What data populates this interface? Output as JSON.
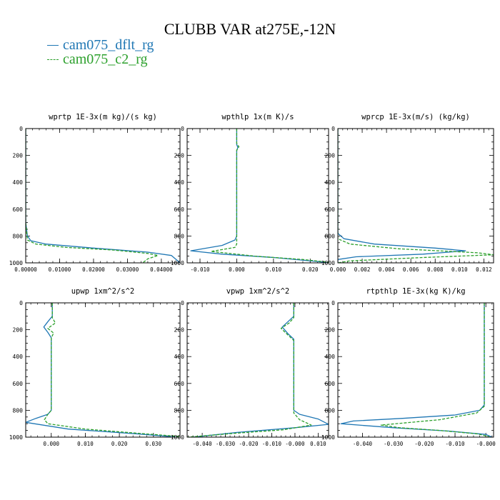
{
  "title": "CLUBB VAR at275E,-12N",
  "legend": [
    {
      "label": "cam075_dflt_rg",
      "color": "#1f77b4",
      "dash": "solid"
    },
    {
      "label": "cam075_c2_rg",
      "color": "#2ca02c",
      "dash": "dashed"
    }
  ],
  "chart_data": [
    {
      "type": "line",
      "title": "wprtp  1E-3x(m kg)/(s kg)",
      "xlim": [
        0,
        0.0455
      ],
      "ylim": [
        1000,
        0
      ],
      "xticks": [
        0,
        0.01,
        0.02,
        0.03,
        0.04
      ],
      "xticklabels": [
        "0.00000",
        "0.01000",
        "0.02000",
        "0.03000",
        "0.04000"
      ],
      "yticks": [
        0,
        200,
        400,
        600,
        800,
        1000
      ],
      "series": [
        {
          "name": "cam075_dflt_rg",
          "points": [
            [
              0,
              0
            ],
            [
              0,
              700
            ],
            [
              0.0005,
              800
            ],
            [
              0.0015,
              835
            ],
            [
              0.006,
              860
            ],
            [
              0.02,
              890
            ],
            [
              0.036,
              920
            ],
            [
              0.043,
              945
            ],
            [
              0.0455,
              1000
            ]
          ]
        },
        {
          "name": "cam075_c2_rg",
          "points": [
            [
              0,
              0
            ],
            [
              0,
              700
            ],
            [
              0.0005,
              830
            ],
            [
              0.003,
              860
            ],
            [
              0.012,
              885
            ],
            [
              0.026,
              905
            ],
            [
              0.036,
              930
            ],
            [
              0.039,
              945
            ],
            [
              0.036,
              970
            ],
            [
              0.0345,
              1000
            ]
          ]
        }
      ]
    },
    {
      "type": "line",
      "title": "wpthlp  1x(m K)/s",
      "xlim": [
        -0.0135,
        0.025
      ],
      "ylim": [
        1000,
        0
      ],
      "xticks": [
        -0.01,
        0,
        0.01,
        0.02
      ],
      "xticklabels": [
        "-0.010",
        "0.000",
        "0.010",
        "0.020"
      ],
      "yticks": [
        0,
        200,
        400,
        600,
        800,
        1000
      ],
      "series": [
        {
          "name": "cam075_dflt_rg",
          "points": [
            [
              0,
              0
            ],
            [
              0,
              120
            ],
            [
              0.0003,
              140
            ],
            [
              0,
              165
            ],
            [
              0,
              800
            ],
            [
              -0.0005,
              830
            ],
            [
              -0.004,
              870
            ],
            [
              -0.0125,
              910
            ],
            [
              -0.004,
              935
            ],
            [
              0.01,
              960
            ],
            [
              0.022,
              990
            ],
            [
              0.025,
              1000
            ]
          ]
        },
        {
          "name": "cam075_c2_rg",
          "points": [
            [
              0,
              0
            ],
            [
              0,
              110
            ],
            [
              0.0006,
              135
            ],
            [
              0,
              160
            ],
            [
              0,
              860
            ],
            [
              -0.0005,
              885
            ],
            [
              -0.007,
              915
            ],
            [
              0.005,
              950
            ],
            [
              0.018,
              975
            ],
            [
              0.025,
              995
            ]
          ]
        }
      ]
    },
    {
      "type": "line",
      "title": "wprcp  1E-3x(m/s) (kg/kg)",
      "xlim": [
        0,
        0.0128
      ],
      "ylim": [
        1000,
        0
      ],
      "xticks": [
        0,
        0.002,
        0.004,
        0.006,
        0.008,
        0.01,
        0.012
      ],
      "xticklabels": [
        "0.000",
        "0.002",
        "0.004",
        "0.006",
        "0.008",
        "0.010",
        "0.012"
      ],
      "yticks": [
        0,
        200,
        400,
        600,
        800,
        1000
      ],
      "series": [
        {
          "name": "cam075_dflt_rg",
          "points": [
            [
              0,
              0
            ],
            [
              0,
              780
            ],
            [
              0.0005,
              820
            ],
            [
              0.003,
              860
            ],
            [
              0.008,
              890
            ],
            [
              0.0105,
              910
            ],
            [
              0.007,
              935
            ],
            [
              0.0015,
              955
            ],
            [
              0,
              975
            ],
            [
              0,
              1000
            ]
          ]
        },
        {
          "name": "cam075_c2_rg",
          "points": [
            [
              0,
              0
            ],
            [
              0,
              820
            ],
            [
              0.001,
              860
            ],
            [
              0.005,
              895
            ],
            [
              0.0115,
              925
            ],
            [
              0.0128,
              940
            ],
            [
              0.007,
              960
            ],
            [
              0.001,
              985
            ],
            [
              0,
              1000
            ]
          ]
        }
      ]
    },
    {
      "type": "line",
      "title": "upwp  1xm^2/s^2",
      "xlim": [
        -0.0075,
        0.0378
      ],
      "ylim": [
        1000,
        0
      ],
      "xticks": [
        0,
        0.01,
        0.02,
        0.03
      ],
      "xticklabels": [
        "0.000",
        "0.010",
        "0.020",
        "0.030"
      ],
      "yticks": [
        0,
        200,
        400,
        600,
        800,
        1000
      ],
      "series": [
        {
          "name": "cam075_dflt_rg",
          "points": [
            [
              0.0003,
              0
            ],
            [
              0.0003,
              100
            ],
            [
              -0.001,
              140
            ],
            [
              -0.0022,
              180
            ],
            [
              -0.001,
              220
            ],
            [
              0,
              260
            ],
            [
              0,
              800
            ],
            [
              -0.001,
              830
            ],
            [
              -0.0045,
              860
            ],
            [
              -0.0075,
              890
            ],
            [
              0.005,
              940
            ],
            [
              0.025,
              975
            ],
            [
              0.037,
              1000
            ]
          ]
        },
        {
          "name": "cam075_c2_rg",
          "points": [
            [
              0.0003,
              0
            ],
            [
              0.0003,
              110
            ],
            [
              0.0012,
              150
            ],
            [
              -0.001,
              190
            ],
            [
              0.0007,
              225
            ],
            [
              0,
              260
            ],
            [
              0,
              800
            ],
            [
              -0.001,
              830
            ],
            [
              -0.002,
              870
            ],
            [
              -0.001,
              900
            ],
            [
              0.01,
              940
            ],
            [
              0.025,
              970
            ],
            [
              0.0378,
              995
            ]
          ]
        }
      ]
    },
    {
      "type": "line",
      "title": "vpwp  1xm^2/s^2",
      "xlim": [
        -0.0465,
        0.0145
      ],
      "ylim": [
        1000,
        0
      ],
      "xticks": [
        -0.04,
        -0.03,
        -0.02,
        -0.01,
        0,
        0.01
      ],
      "xticklabels": [
        "-0.040",
        "-0.030",
        "-0.020",
        "-0.010",
        "-0.000",
        "0.010"
      ],
      "yticks": [
        0,
        200,
        400,
        600,
        800,
        1000
      ],
      "series": [
        {
          "name": "cam075_dflt_rg",
          "points": [
            [
              -0.0005,
              0
            ],
            [
              -0.0005,
              100
            ],
            [
              -0.003,
              140
            ],
            [
              -0.0055,
              180
            ],
            [
              -0.003,
              230
            ],
            [
              -0.0005,
              270
            ],
            [
              -0.0005,
              800
            ],
            [
              0.002,
              830
            ],
            [
              0.01,
              865
            ],
            [
              0.0145,
              905
            ],
            [
              0,
              930
            ],
            [
              -0.025,
              965
            ],
            [
              -0.044,
              1000
            ]
          ]
        },
        {
          "name": "cam075_c2_rg",
          "points": [
            [
              -0.0005,
              0
            ],
            [
              -0.0005,
              110
            ],
            [
              -0.0025,
              150
            ],
            [
              -0.006,
              190
            ],
            [
              -0.003,
              240
            ],
            [
              -0.0005,
              280
            ],
            [
              -0.0005,
              820
            ],
            [
              0.002,
              870
            ],
            [
              0.007,
              910
            ],
            [
              -0.005,
              945
            ],
            [
              -0.025,
              970
            ],
            [
              -0.0465,
              1000
            ]
          ]
        }
      ]
    },
    {
      "type": "line",
      "title": "rtpthlp  1E-3x(kg K)/kg",
      "xlim": [
        -0.048,
        0.0025
      ],
      "ylim": [
        1000,
        0
      ],
      "xticks": [
        -0.04,
        -0.03,
        -0.02,
        -0.01,
        0
      ],
      "xticklabels": [
        "-0.040",
        "-0.030",
        "-0.020",
        "-0.010",
        "-0.000"
      ],
      "yticks": [
        0,
        200,
        400,
        600,
        800,
        1000
      ],
      "series": [
        {
          "name": "cam075_dflt_rg",
          "points": [
            [
              -0.0005,
              0
            ],
            [
              -0.0005,
              760
            ],
            [
              -0.002,
              800
            ],
            [
              -0.01,
              835
            ],
            [
              -0.027,
              860
            ],
            [
              -0.043,
              880
            ],
            [
              -0.047,
              900
            ],
            [
              -0.03,
              930
            ],
            [
              -0.012,
              955
            ],
            [
              0,
              980
            ],
            [
              0.002,
              1000
            ]
          ]
        },
        {
          "name": "cam075_c2_rg",
          "points": [
            [
              -0.0005,
              0
            ],
            [
              -0.0005,
              770
            ],
            [
              -0.003,
              820
            ],
            [
              -0.015,
              870
            ],
            [
              -0.034,
              910
            ],
            [
              -0.028,
              930
            ],
            [
              -0.015,
              950
            ],
            [
              -0.003,
              975
            ],
            [
              0.001,
              995
            ]
          ]
        }
      ]
    }
  ]
}
